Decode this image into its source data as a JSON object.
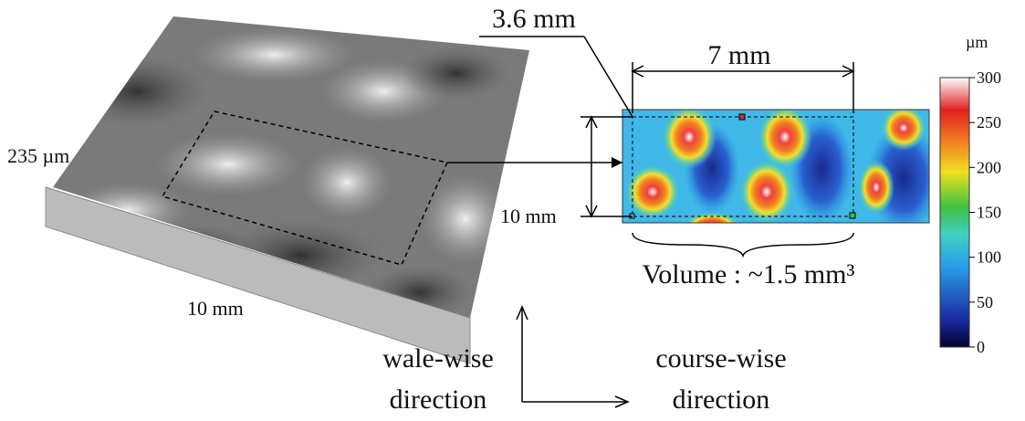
{
  "surface": {
    "height_label": "235 µm",
    "width_label": "10 mm"
  },
  "map": {
    "width_label": "7 mm",
    "height_label": "10 mm",
    "offset_label": "3.6 mm",
    "volume_label": "Volume : ~1.5 mm³"
  },
  "colorbar": {
    "unit": "µm",
    "ticks": [
      300,
      250,
      200,
      150,
      100,
      50,
      0
    ]
  },
  "directions": {
    "wale": [
      "wale-wise",
      "direction"
    ],
    "course": [
      "course-wise",
      "direction"
    ]
  }
}
